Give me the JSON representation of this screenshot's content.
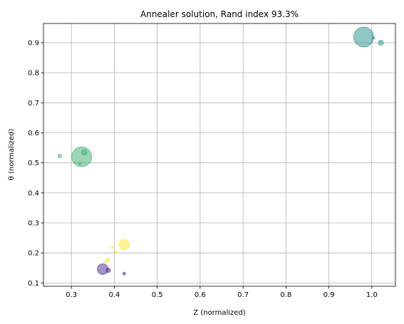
{
  "chart_data": {
    "type": "scatter",
    "title": "Annealer solution, Rand index 93.3%",
    "xlabel": "Z (normalized)",
    "ylabel": "θ (normalized)",
    "xlim": [
      0.235,
      1.055
    ],
    "ylim": [
      0.089,
      0.964
    ],
    "xticks": [
      "0.3",
      "0.4",
      "0.5",
      "0.6",
      "0.7",
      "0.8",
      "0.9",
      "1.0"
    ],
    "yticks": [
      "0.1",
      "0.2",
      "0.3",
      "0.4",
      "0.5",
      "0.6",
      "0.7",
      "0.8",
      "0.9"
    ],
    "grid": true,
    "series": [
      {
        "color": "#21918c",
        "points": [
          {
            "x": 0.981,
            "y": 0.919,
            "r": 14
          },
          {
            "x": 1.021,
            "y": 0.9,
            "r": 3.5
          },
          {
            "x": 1.004,
            "y": 0.916,
            "r": 1.5
          }
        ]
      },
      {
        "color": "#3bad6e",
        "points": [
          {
            "x": 0.324,
            "y": 0.52,
            "r": 14
          },
          {
            "x": 0.33,
            "y": 0.535,
            "r": 4
          },
          {
            "x": 0.273,
            "y": 0.523,
            "r": 2.5
          },
          {
            "x": 0.32,
            "y": 0.497,
            "r": 1.5
          }
        ]
      },
      {
        "color": "#fde725",
        "points": [
          {
            "x": 0.423,
            "y": 0.228,
            "r": 7
          },
          {
            "x": 0.385,
            "y": 0.177,
            "r": 2.5
          },
          {
            "x": 0.395,
            "y": 0.218,
            "r": 1.5
          },
          {
            "x": 0.404,
            "y": 0.203,
            "r": 1.5
          },
          {
            "x": 0.38,
            "y": 0.17,
            "r": 1.5
          }
        ]
      },
      {
        "color": "#482c8c",
        "points": [
          {
            "x": 0.373,
            "y": 0.146,
            "r": 7.5
          },
          {
            "x": 0.386,
            "y": 0.142,
            "r": 3
          },
          {
            "x": 0.423,
            "y": 0.131,
            "r": 2
          }
        ]
      }
    ]
  }
}
